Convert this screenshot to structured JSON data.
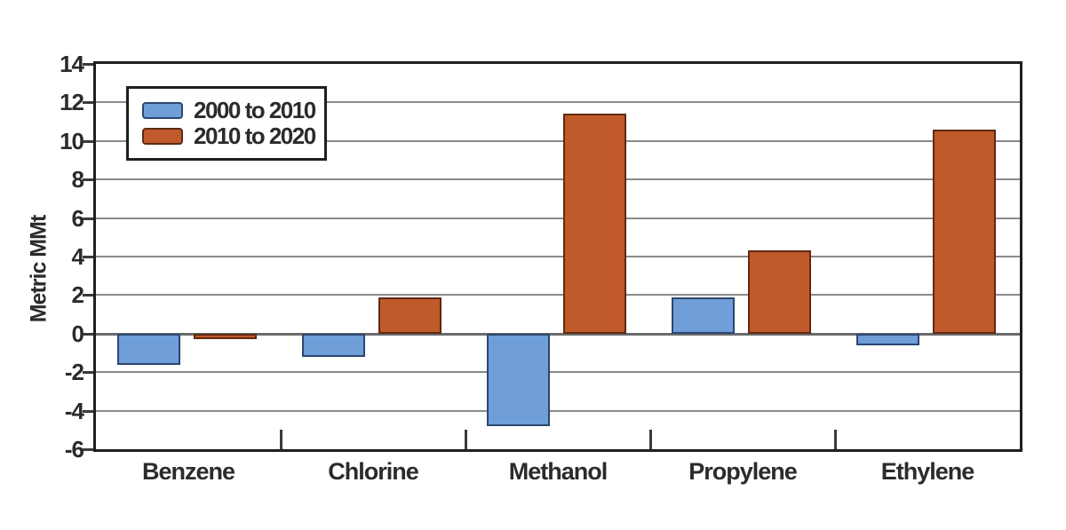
{
  "chart_data": {
    "type": "bar",
    "title": "",
    "xlabel": "",
    "ylabel": "Metric MMt",
    "categories": [
      "Benzene",
      "Chlorine",
      "Methanol",
      "Propylene",
      "Ethylene"
    ],
    "series": [
      {
        "name": "2000 to 2010",
        "color": "#6f9ed8",
        "border_color": "#2c4770",
        "values": [
          -1.6,
          -1.2,
          -4.8,
          1.9,
          -0.6
        ]
      },
      {
        "name": "2010 to 2020",
        "color": "#c05a2b",
        "border_color": "#5f2a12",
        "values": [
          -0.3,
          1.9,
          11.4,
          4.3,
          10.6
        ]
      }
    ],
    "ylim": [
      -6,
      14
    ],
    "ytick_step": 2,
    "grid": true,
    "legend_position": "top-left"
  },
  "colors": {
    "background": "#ffffff",
    "gridline": "#8a8a8a",
    "zero_line": "#6b6b6b",
    "frame": "#1f1f1f",
    "text": "#2b2b2b"
  }
}
